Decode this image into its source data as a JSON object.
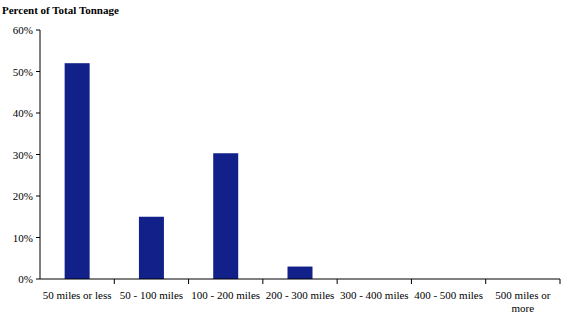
{
  "chart_data": {
    "type": "bar",
    "ylabel": "Percent of Total Tonnage",
    "categories": [
      "50 miles or less",
      "50 - 100 miles",
      "100 - 200 miles",
      "200 - 300 miles",
      "300 - 400 miles",
      "400 - 500 miles",
      "500 miles or more"
    ],
    "values": [
      52,
      15,
      30.3,
      3,
      0,
      0,
      0
    ],
    "color": "#12218a",
    "ylim": [
      0,
      60
    ],
    "yticks": [
      {
        "value": 0,
        "label": "0%"
      },
      {
        "value": 10,
        "label": "10%"
      },
      {
        "value": 20,
        "label": "20%"
      },
      {
        "value": 30,
        "label": "30%"
      },
      {
        "value": 40,
        "label": "40%"
      },
      {
        "value": 50,
        "label": "50%"
      },
      {
        "value": 60,
        "label": "60%"
      }
    ],
    "grid": false
  }
}
